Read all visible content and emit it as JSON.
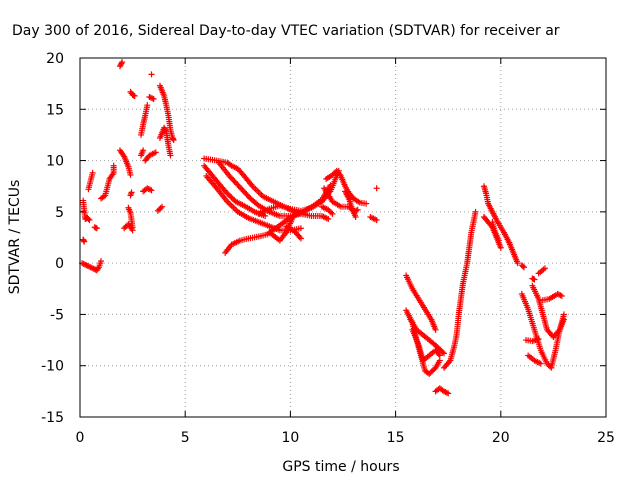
{
  "chart_data": {
    "type": "scatter",
    "title": "Day 300 of 2016, Sidereal Day-to-day VTEC variation (SDTVAR) for receiver ar",
    "xlabel": "GPS time / hours",
    "ylabel": "SDTVAR / TECUs",
    "xlim": [
      0,
      25
    ],
    "ylim": [
      -15,
      20
    ],
    "xticks": [
      0,
      5,
      10,
      15,
      20,
      25
    ],
    "yticks": [
      -15,
      -10,
      -5,
      0,
      5,
      10,
      15,
      20
    ],
    "grid": true,
    "marker": "+",
    "series": [
      {
        "name": "SDTVAR",
        "color": "#ff0000",
        "polylines": [
          [
            [
              0.15,
              6.1
            ],
            [
              0.25,
              4.3
            ],
            [
              0.35,
              4.4
            ],
            [
              0.45,
              4.2
            ]
          ],
          [
            [
              0.15,
              2.3
            ],
            [
              0.2,
              2.1
            ]
          ],
          [
            [
              0.1,
              0.0
            ],
            [
              0.3,
              -0.2
            ],
            [
              0.5,
              -0.4
            ],
            [
              0.7,
              -0.6
            ],
            [
              0.8,
              -0.7
            ],
            [
              0.9,
              -0.4
            ],
            [
              1.0,
              0.2
            ]
          ],
          [
            [
              0.4,
              7.2
            ],
            [
              0.5,
              8.0
            ],
            [
              0.6,
              8.8
            ]
          ],
          [
            [
              0.7,
              3.5
            ],
            [
              0.8,
              3.4
            ]
          ],
          [
            [
              1.0,
              6.3
            ],
            [
              1.2,
              6.6
            ],
            [
              1.4,
              8.2
            ],
            [
              1.6,
              8.8
            ],
            [
              1.6,
              9.5
            ]
          ],
          [
            [
              1.9,
              19.2
            ],
            [
              2.0,
              19.6
            ]
          ],
          [
            [
              1.9,
              11.0
            ],
            [
              2.1,
              10.4
            ],
            [
              2.3,
              9.4
            ],
            [
              2.4,
              8.6
            ]
          ],
          [
            [
              2.1,
              3.4
            ],
            [
              2.3,
              3.8
            ],
            [
              2.5,
              3.2
            ]
          ],
          [
            [
              2.3,
              5.4
            ],
            [
              2.4,
              4.9
            ],
            [
              2.5,
              3.5
            ]
          ],
          [
            [
              2.4,
              6.6
            ],
            [
              2.45,
              6.9
            ]
          ],
          [
            [
              2.4,
              16.7
            ],
            [
              2.5,
              16.4
            ],
            [
              2.6,
              16.3
            ]
          ],
          [
            [
              2.9,
              10.5
            ],
            [
              3.0,
              11.0
            ]
          ],
          [
            [
              2.9,
              12.5
            ],
            [
              3.0,
              13.5
            ],
            [
              3.1,
              14.4
            ],
            [
              3.2,
              15.4
            ]
          ],
          [
            [
              3.0,
              7.0
            ],
            [
              3.2,
              7.3
            ],
            [
              3.4,
              7.1
            ]
          ],
          [
            [
              3.1,
              10.0
            ],
            [
              3.3,
              10.5
            ],
            [
              3.6,
              10.8
            ]
          ],
          [
            [
              3.3,
              16.2
            ],
            [
              3.5,
              16.0
            ]
          ],
          [
            [
              3.4,
              18.4
            ]
          ],
          [
            [
              3.7,
              5.1
            ],
            [
              3.9,
              5.5
            ]
          ],
          [
            [
              3.8,
              17.3
            ],
            [
              4.0,
              16.3
            ],
            [
              4.1,
              15.4
            ],
            [
              4.2,
              14.4
            ],
            [
              4.3,
              13.0
            ],
            [
              4.4,
              12.2
            ],
            [
              4.45,
              12.0
            ]
          ],
          [
            [
              3.8,
              12.2
            ],
            [
              4.0,
              13.2
            ],
            [
              4.1,
              12.8
            ],
            [
              4.2,
              11.5
            ],
            [
              4.3,
              10.5
            ]
          ],
          [
            [
              5.9,
              10.2
            ],
            [
              6.5,
              10.0
            ],
            [
              7.0,
              9.8
            ],
            [
              7.2,
              9.5
            ],
            [
              7.5,
              9.2
            ],
            [
              7.8,
              8.5
            ],
            [
              8.2,
              7.5
            ],
            [
              8.7,
              6.5
            ],
            [
              9.2,
              6.0
            ],
            [
              9.7,
              5.5
            ],
            [
              10.2,
              5.0
            ],
            [
              10.7,
              4.8
            ]
          ],
          [
            [
              5.9,
              9.5
            ],
            [
              6.3,
              8.5
            ],
            [
              6.7,
              7.5
            ],
            [
              7.0,
              6.8
            ],
            [
              7.4,
              6.0
            ],
            [
              7.8,
              5.6
            ],
            [
              8.3,
              5.0
            ],
            [
              8.8,
              4.6
            ]
          ],
          [
            [
              6.0,
              8.5
            ],
            [
              6.5,
              7.3
            ],
            [
              7.0,
              6.0
            ],
            [
              7.5,
              5.0
            ],
            [
              8.0,
              4.4
            ],
            [
              8.5,
              4.0
            ],
            [
              9.0,
              3.6
            ],
            [
              9.5,
              3.2
            ],
            [
              10.0,
              3.2
            ],
            [
              10.5,
              3.4
            ]
          ],
          [
            [
              6.6,
              9.8
            ],
            [
              7.1,
              8.5
            ],
            [
              7.6,
              7.4
            ],
            [
              8.1,
              6.3
            ],
            [
              8.5,
              5.6
            ],
            [
              9.0,
              5.0
            ],
            [
              9.5,
              4.6
            ],
            [
              10.0,
              4.6
            ],
            [
              10.5,
              4.8
            ],
            [
              11.0,
              4.6
            ],
            [
              11.5,
              4.6
            ],
            [
              11.8,
              4.3
            ]
          ],
          [
            [
              6.9,
              1.0
            ],
            [
              7.2,
              1.8
            ],
            [
              7.6,
              2.2
            ],
            [
              8.0,
              2.4
            ],
            [
              8.5,
              2.6
            ],
            [
              8.9,
              2.8
            ],
            [
              9.3,
              3.4
            ],
            [
              9.7,
              4.0
            ],
            [
              10.1,
              4.6
            ],
            [
              10.6,
              5.0
            ],
            [
              11.1,
              5.6
            ],
            [
              11.5,
              6.2
            ],
            [
              11.9,
              7.6
            ]
          ],
          [
            [
              8.5,
              4.8
            ],
            [
              9.0,
              5.3
            ],
            [
              9.5,
              5.6
            ],
            [
              10.0,
              5.3
            ],
            [
              10.5,
              5.1
            ],
            [
              11.0,
              5.4
            ],
            [
              11.5,
              6.0
            ],
            [
              11.9,
              7.0
            ],
            [
              12.2,
              8.5
            ],
            [
              12.3,
              9.0
            ]
          ],
          [
            [
              9.0,
              3.0
            ],
            [
              9.5,
              2.2
            ],
            [
              9.8,
              3.0
            ],
            [
              10.1,
              4.4
            ],
            [
              10.3,
              4.9
            ]
          ],
          [
            [
              9.8,
              3.6
            ],
            [
              10.2,
              3.1
            ],
            [
              10.5,
              2.4
            ]
          ],
          [
            [
              11.7,
              8.2
            ],
            [
              12.0,
              8.6
            ],
            [
              12.2,
              9.0
            ],
            [
              12.4,
              8.5
            ],
            [
              12.6,
              7.5
            ],
            [
              12.8,
              6.8
            ],
            [
              13.0,
              6.3
            ],
            [
              13.3,
              5.9
            ],
            [
              13.6,
              5.8
            ]
          ],
          [
            [
              11.6,
              7.3
            ],
            [
              12.0,
              6.0
            ],
            [
              12.4,
              5.5
            ],
            [
              12.8,
              5.5
            ],
            [
              13.0,
              5.0
            ],
            [
              13.2,
              5.2
            ]
          ],
          [
            [
              11.5,
              5.5
            ],
            [
              11.8,
              5.2
            ],
            [
              12.0,
              4.8
            ]
          ],
          [
            [
              12.6,
              7.0
            ],
            [
              12.8,
              6.2
            ],
            [
              12.9,
              5.5
            ],
            [
              13.0,
              5.0
            ],
            [
              13.1,
              4.5
            ]
          ],
          [
            [
              13.8,
              4.5
            ],
            [
              14.1,
              4.2
            ]
          ],
          [
            [
              14.1,
              7.3
            ]
          ],
          [
            [
              15.5,
              -1.2
            ],
            [
              15.8,
              -2.5
            ],
            [
              16.1,
              -3.5
            ],
            [
              16.4,
              -4.5
            ],
            [
              16.7,
              -5.5
            ],
            [
              16.9,
              -6.5
            ]
          ],
          [
            [
              15.5,
              -4.6
            ],
            [
              15.8,
              -5.8
            ],
            [
              16.0,
              -7.5
            ],
            [
              16.2,
              -9.0
            ],
            [
              16.4,
              -10.5
            ],
            [
              16.6,
              -10.8
            ],
            [
              16.9,
              -10.2
            ],
            [
              17.1,
              -9.5
            ]
          ],
          [
            [
              15.7,
              -5.5
            ],
            [
              16.0,
              -6.5
            ],
            [
              16.3,
              -7.0
            ],
            [
              16.6,
              -7.5
            ],
            [
              17.0,
              -8.2
            ],
            [
              17.3,
              -8.8
            ]
          ],
          [
            [
              15.8,
              -6.5
            ],
            [
              16.1,
              -8.0
            ],
            [
              16.3,
              -9.5
            ],
            [
              16.6,
              -9.0
            ],
            [
              16.9,
              -8.5
            ],
            [
              17.1,
              -9.0
            ]
          ],
          [
            [
              16.9,
              -12.5
            ],
            [
              17.1,
              -12.2
            ],
            [
              17.3,
              -12.5
            ],
            [
              17.5,
              -12.7
            ]
          ],
          [
            [
              17.3,
              -10.2
            ],
            [
              17.6,
              -9.5
            ],
            [
              17.8,
              -8.0
            ],
            [
              17.9,
              -7.0
            ]
          ],
          [
            [
              17.9,
              -7.0
            ],
            [
              18.0,
              -5.0
            ],
            [
              18.1,
              -3.5
            ],
            [
              18.2,
              -2.0
            ],
            [
              18.3,
              -1.0
            ],
            [
              18.4,
              0.0
            ],
            [
              18.5,
              1.5
            ],
            [
              18.6,
              3.0
            ],
            [
              18.7,
              4.0
            ],
            [
              18.8,
              5.0
            ]
          ],
          [
            [
              19.2,
              7.5
            ],
            [
              19.3,
              6.8
            ],
            [
              19.4,
              5.8
            ],
            [
              19.6,
              5.0
            ],
            [
              19.8,
              4.2
            ],
            [
              20.0,
              3.5
            ],
            [
              20.2,
              2.8
            ],
            [
              20.4,
              2.0
            ],
            [
              20.6,
              1.0
            ],
            [
              20.8,
              0.0
            ]
          ],
          [
            [
              19.2,
              4.5
            ],
            [
              19.4,
              4.0
            ],
            [
              19.6,
              3.5
            ],
            [
              19.8,
              2.5
            ],
            [
              20.0,
              1.5
            ]
          ],
          [
            [
              19.6,
              4.0
            ],
            [
              19.7,
              3.2
            ],
            [
              19.9,
              2.2
            ]
          ],
          [
            [
              21.0,
              -0.2
            ],
            [
              21.1,
              -0.4
            ]
          ],
          [
            [
              21.0,
              -3.0
            ],
            [
              21.3,
              -4.5
            ],
            [
              21.6,
              -6.5
            ],
            [
              21.9,
              -8.5
            ],
            [
              22.2,
              -9.8
            ],
            [
              22.4,
              -10.2
            ],
            [
              22.6,
              -8.5
            ],
            [
              22.8,
              -6.5
            ],
            [
              23.0,
              -5.0
            ]
          ],
          [
            [
              21.2,
              -7.5
            ],
            [
              21.5,
              -7.6
            ],
            [
              21.8,
              -7.4
            ]
          ],
          [
            [
              21.3,
              -9.0
            ],
            [
              21.6,
              -9.5
            ],
            [
              21.9,
              -9.8
            ]
          ],
          [
            [
              21.5,
              -2.2
            ],
            [
              21.8,
              -3.5
            ],
            [
              22.0,
              -5.0
            ],
            [
              22.2,
              -6.5
            ],
            [
              22.5,
              -7.2
            ],
            [
              22.8,
              -6.5
            ],
            [
              23.0,
              -5.5
            ]
          ],
          [
            [
              22.0,
              -3.6
            ],
            [
              22.3,
              -3.5
            ],
            [
              22.7,
              -3.0
            ],
            [
              22.9,
              -3.2
            ]
          ],
          [
            [
              21.8,
              -1.0
            ],
            [
              22.1,
              -0.5
            ]
          ],
          [
            [
              21.5,
              -1.5
            ],
            [
              21.6,
              -1.6
            ]
          ]
        ]
      }
    ]
  }
}
